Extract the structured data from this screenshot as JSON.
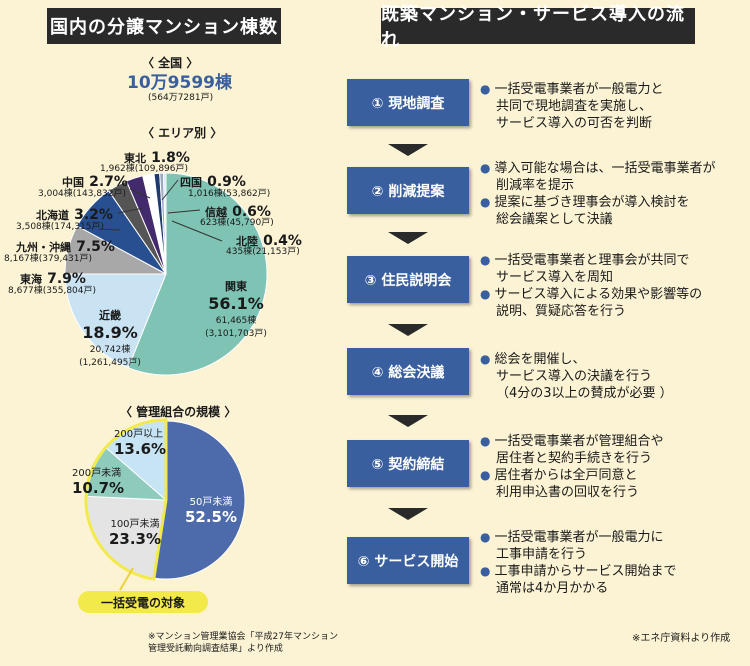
{
  "left_title": "国内の分譲マンション棟数",
  "right_title": "既築マンション・サービス導入の流れ",
  "national": {
    "label": "〈 全国 〉",
    "buildings": "10万9599棟",
    "units": "(564万7281戸)"
  },
  "area_label": "〈 エリア別 〉",
  "areas": [
    {
      "name": "関東",
      "pct": "56.1%",
      "buildings": "61,465棟",
      "units": "(3,101,703戸)",
      "value": 56.1,
      "color": "#7fc3b4"
    },
    {
      "name": "近畿",
      "pct": "18.9%",
      "buildings": "20,742棟",
      "units": "(1,261,495戸)",
      "value": 18.9,
      "color": "#c9e3f3"
    },
    {
      "name": "東海",
      "pct": "7.9%",
      "buildings": "8,677棟",
      "units": "(355,804戸)",
      "value": 7.9,
      "color": "#a8a8a8"
    },
    {
      "name": "九州・沖縄",
      "pct": "7.5%",
      "buildings": "8,167棟",
      "units": "(379,431戸)",
      "value": 7.5,
      "color": "#284f8f"
    },
    {
      "name": "北海道",
      "pct": "3.2%",
      "buildings": "3,508棟",
      "units": "(174,315戸)",
      "value": 3.2,
      "color": "#555555"
    },
    {
      "name": "中国",
      "pct": "2.7%",
      "buildings": "3,004棟",
      "units": "(143,832戸)",
      "value": 2.7,
      "color": "#432a6c"
    },
    {
      "name": "東北",
      "pct": "1.8%",
      "buildings": "1,962棟",
      "units": "(109,896戸)",
      "value": 1.8,
      "color": "#ffffff"
    },
    {
      "name": "四国",
      "pct": "0.9%",
      "buildings": "1,016棟",
      "units": "(53,862戸)",
      "value": 0.9,
      "color": "#1e3a6e"
    },
    {
      "name": "信越",
      "pct": "0.6%",
      "buildings": "623棟",
      "units": "(45,790戸)",
      "value": 0.6,
      "color": "#9aa8c4"
    },
    {
      "name": "北陸",
      "pct": "0.4%",
      "buildings": "435棟",
      "units": "(21,153戸)",
      "value": 0.4,
      "color": "#d0e4f4"
    }
  ],
  "scale_label": "〈 管理組合の規模 〉",
  "scale": [
    {
      "name": "50戸未満",
      "pct": "52.5%",
      "value": 52.5,
      "color": "#4d6bab"
    },
    {
      "name": "100戸未満",
      "pct": "23.3%",
      "value": 23.3,
      "color": "#e4e4e4"
    },
    {
      "name": "200戸未満",
      "pct": "10.7%",
      "value": 10.7,
      "color": "#8fcbbd"
    },
    {
      "name": "200戸以上",
      "pct": "13.6%",
      "value": 13.6,
      "color": "#c6e4f4"
    }
  ],
  "target_label": "一括受電の対象",
  "source_left": [
    "※マンション管理業協会「平成27年マンション",
    "管理受託動向調査結果」より作成"
  ],
  "source_right": "※エネ庁資料より作成",
  "steps": [
    {
      "label": "① 現地調査",
      "lines": [
        {
          "b": true,
          "t": "一括受電事業者が一般電力と"
        },
        {
          "b": false,
          "t": "共同で現地調査を実施し、"
        },
        {
          "b": false,
          "t": "サービス導入の可否を判断"
        }
      ]
    },
    {
      "label": "② 削減提案",
      "lines": [
        {
          "b": true,
          "t": "導入可能な場合は、一括受電事業者が"
        },
        {
          "b": false,
          "t": "削減率を提示"
        },
        {
          "b": true,
          "t": "提案に基づき理事会が導入検討を"
        },
        {
          "b": false,
          "t": "総会議案として決議"
        }
      ]
    },
    {
      "label": "③ 住民説明会",
      "lines": [
        {
          "b": true,
          "t": "一括受電事業者と理事会が共同で"
        },
        {
          "b": false,
          "t": "サービス導入を周知"
        },
        {
          "b": true,
          "t": "サービス導入による効果や影響等の"
        },
        {
          "b": false,
          "t": "説明、質疑応答を行う"
        }
      ]
    },
    {
      "label": "④ 総会決議",
      "lines": [
        {
          "b": true,
          "t": "総会を開催し、"
        },
        {
          "b": false,
          "t": "サービス導入の決議を行う"
        },
        {
          "b": false,
          "t": "（4分の3以上の賛成が必要 ）"
        }
      ]
    },
    {
      "label": "⑤ 契約締結",
      "lines": [
        {
          "b": true,
          "t": "一括受電事業者が管理組合や"
        },
        {
          "b": false,
          "t": "居住者と契約手続きを行う"
        },
        {
          "b": true,
          "t": "居住者からは全戸同意と"
        },
        {
          "b": false,
          "t": "利用申込書の回収を行う"
        }
      ]
    },
    {
      "label": "⑥ サービス開始",
      "lines": [
        {
          "b": true,
          "t": "一括受電事業者が一般電力に"
        },
        {
          "b": false,
          "t": "工事申請を行う"
        },
        {
          "b": true,
          "t": "工事申請からサービス開始まで"
        },
        {
          "b": false,
          "t": "通常は4か月かかる"
        }
      ]
    }
  ]
}
